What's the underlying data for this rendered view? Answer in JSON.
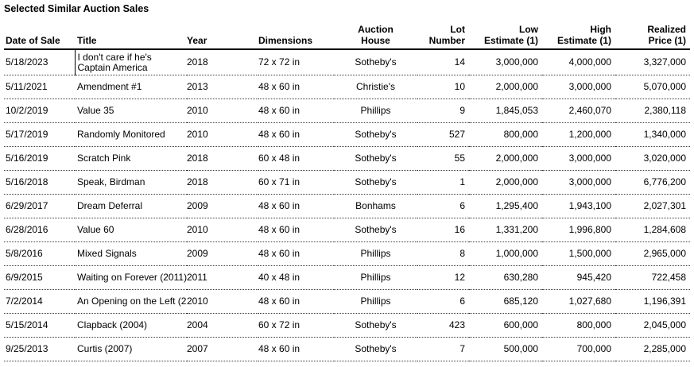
{
  "page": {
    "title": "Selected Similar Auction Sales"
  },
  "colors": {
    "text": "#000000",
    "header_rule": "#000000",
    "row_separator_dotted": "#3c3c3c",
    "background": "#ffffff"
  },
  "table": {
    "columns": [
      {
        "id": "date_of_sale",
        "l1": "",
        "l2": "Date of Sale",
        "align": "left"
      },
      {
        "id": "title",
        "l1": "",
        "l2": "Title",
        "align": "left"
      },
      {
        "id": "year",
        "l1": "",
        "l2": "Year",
        "align": "left"
      },
      {
        "id": "dimensions",
        "l1": "",
        "l2": "Dimensions",
        "align": "left"
      },
      {
        "id": "auction_house",
        "l1": "Auction",
        "l2": "House",
        "align": "center"
      },
      {
        "id": "lot_number",
        "l1": "Lot",
        "l2": "Number",
        "align": "right"
      },
      {
        "id": "low_estimate",
        "l1": "Low",
        "l2": "Estimate (1)",
        "align": "right"
      },
      {
        "id": "high_estimate",
        "l1": "High",
        "l2": "Estimate (1)",
        "align": "right"
      },
      {
        "id": "realized_price",
        "l1": "Realized",
        "l2": "Price (1)",
        "align": "right"
      }
    ],
    "rows": [
      [
        "5/18/2023",
        "I don't care if he's Captain America",
        "2018",
        "72 x 72 in",
        "Sotheby's",
        "14",
        "3,000,000",
        "4,000,000",
        "3,327,000"
      ],
      [
        "5/11/2021",
        "Amendment #1",
        "2013",
        "48 x 60 in",
        "Christie's",
        "10",
        "2,000,000",
        "3,000,000",
        "5,070,000"
      ],
      [
        "10/2/2019",
        "Value 35",
        "2010",
        "48 x 60 in",
        "Phillips",
        "9",
        "1,845,053",
        "2,460,070",
        "2,380,118"
      ],
      [
        "5/17/2019",
        "Randomly Monitored",
        "2010",
        "48 x 60 in",
        "Sotheby's",
        "527",
        "800,000",
        "1,200,000",
        "1,340,000"
      ],
      [
        "5/16/2019",
        "Scratch Pink",
        "2018",
        "60 x 48 in",
        "Sotheby's",
        "55",
        "2,000,000",
        "3,000,000",
        "3,020,000"
      ],
      [
        "5/16/2018",
        "Speak, Birdman",
        "2018",
        "60 x 71 in",
        "Sotheby's",
        "1",
        "2,000,000",
        "3,000,000",
        "6,776,200"
      ],
      [
        "6/29/2017",
        "Dream Deferral",
        "2009",
        "48 x 60 in",
        "Bonhams",
        "6",
        "1,295,400",
        "1,943,100",
        "2,027,301"
      ],
      [
        "6/28/2016",
        "Value 60",
        "2010",
        "48 x 60 in",
        "Sotheby's",
        "16",
        "1,331,200",
        "1,996,800",
        "1,284,608"
      ],
      [
        "5/8/2016",
        "Mixed Signals",
        "2009",
        "48 x 60 in",
        "Phillips",
        "8",
        "1,000,000",
        "1,500,000",
        "2,965,000"
      ],
      [
        "6/9/2015",
        "Waiting on Forever (2011)",
        "2011",
        "40 x 48 in",
        "Phillips",
        "12",
        "630,280",
        "945,420",
        "722,458"
      ],
      [
        "7/2/2014",
        "An Opening on the Left (2",
        "2010",
        "48 x 60 in",
        "Phillips",
        "6",
        "685,120",
        "1,027,680",
        "1,196,391"
      ],
      [
        "5/15/2014",
        "Clapback (2004)",
        "2004",
        "60 x 72 in",
        "Sotheby's",
        "423",
        "600,000",
        "800,000",
        "2,045,000"
      ],
      [
        "9/25/2013",
        "Curtis (2007)",
        "2007",
        "48 x 60 in",
        "Sotheby's",
        "7",
        "500,000",
        "700,000",
        "2,285,000"
      ]
    ]
  }
}
